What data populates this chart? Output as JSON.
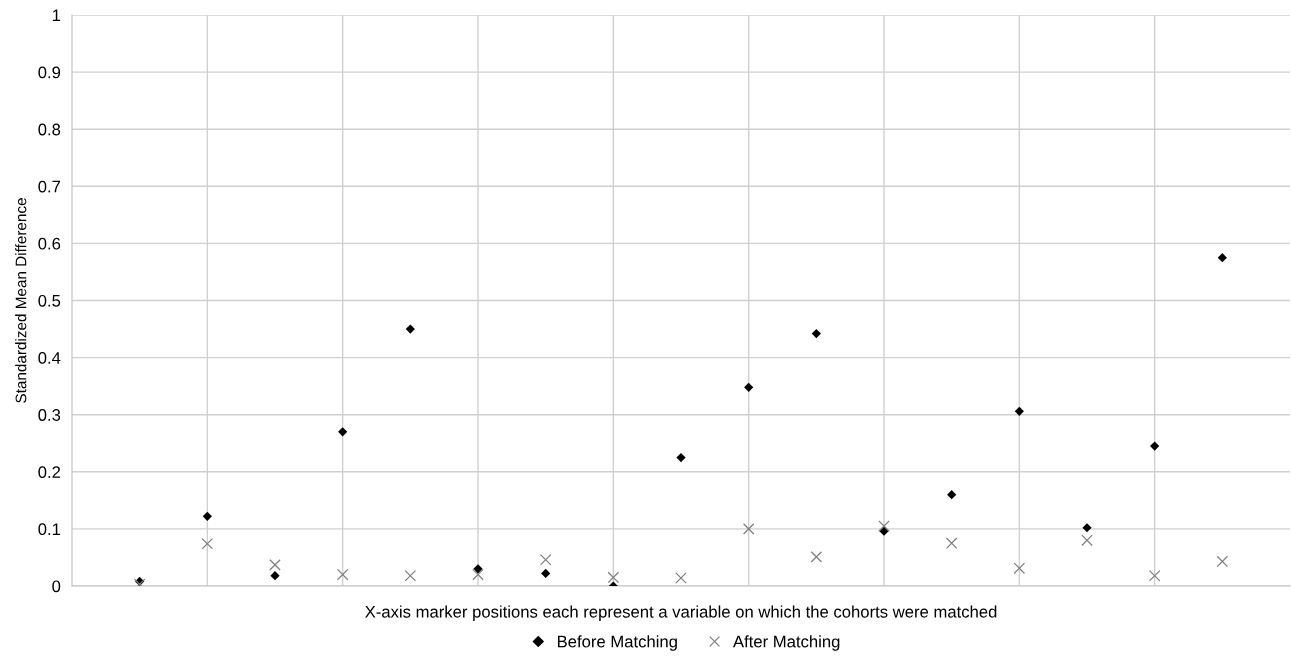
{
  "chart_data": {
    "type": "scatter",
    "xlabel": "X-axis marker positions each represent a variable on which the cohorts were matched",
    "ylabel": "Standardized Mean Difference",
    "categories": [
      null,
      null,
      null,
      null,
      null,
      null,
      null,
      null,
      null,
      null,
      null,
      null,
      null,
      null,
      null,
      null,
      null
    ],
    "series": [
      {
        "name": "Before Matching",
        "color": "#000000",
        "marker": "diamond",
        "values": [
          0.008,
          0.122,
          0.018,
          0.27,
          0.45,
          0.03,
          0.022,
          0.0,
          0.225,
          0.348,
          0.442,
          0.096,
          0.16,
          0.306,
          0.102,
          0.245,
          0.575
        ]
      },
      {
        "name": "After Matching",
        "color": "#7f7f7f",
        "marker": "cross",
        "values": [
          0.003,
          0.074,
          0.037,
          0.02,
          0.018,
          0.02,
          0.046,
          0.015,
          0.014,
          0.1,
          0.051,
          0.105,
          0.075,
          0.031,
          0.08,
          0.018,
          0.043
        ]
      }
    ],
    "ylim": [
      0,
      1
    ],
    "yticks": [
      0,
      0.1,
      0.2,
      0.3,
      0.4,
      0.5,
      0.6,
      0.7,
      0.8,
      0.9,
      1
    ],
    "tick_labels": "y",
    "grid": true,
    "legend": "bottom"
  }
}
